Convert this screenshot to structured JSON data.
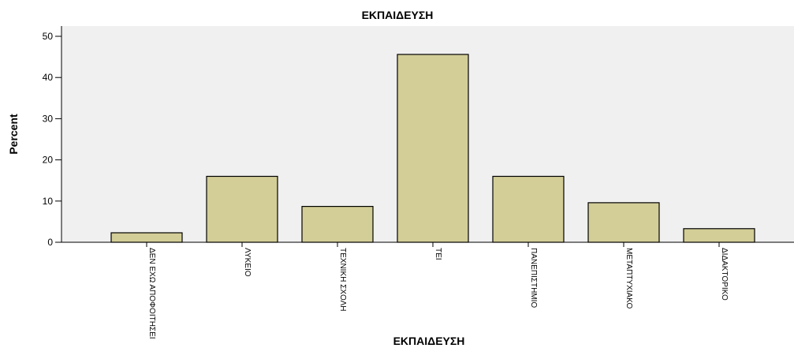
{
  "chart_data": {
    "type": "bar",
    "title": "ΕΚΠΑΙΔΕΥΣΗ",
    "x_label": "ΕΚΠΑΙΔΕΥΣΗ",
    "y_label": "Percent",
    "categories": [
      "ΔΕΝ ΕΧΩ ΑΠΟΦΟΙΤΗΣΕΙ",
      "ΛΥΚΕΙΟ",
      "ΤΕΧΝΙΚΗ ΣΧΟΛΗ",
      "ΤΕΙ",
      "ΠΑΝΕΠΙΣΤΗΜΙΟ",
      "ΜΕΤΑΠΤΥΧΙΑΚΟ",
      "ΔΙΔΑΚΤΟΡΙΚΟ"
    ],
    "values": [
      2.3,
      16.0,
      8.7,
      45.6,
      16.0,
      9.6,
      3.3
    ],
    "color": "#d3ce97",
    "ylim": [
      0,
      50
    ],
    "yticks": [
      0,
      10,
      20,
      30,
      40,
      50
    ],
    "grid": false
  }
}
